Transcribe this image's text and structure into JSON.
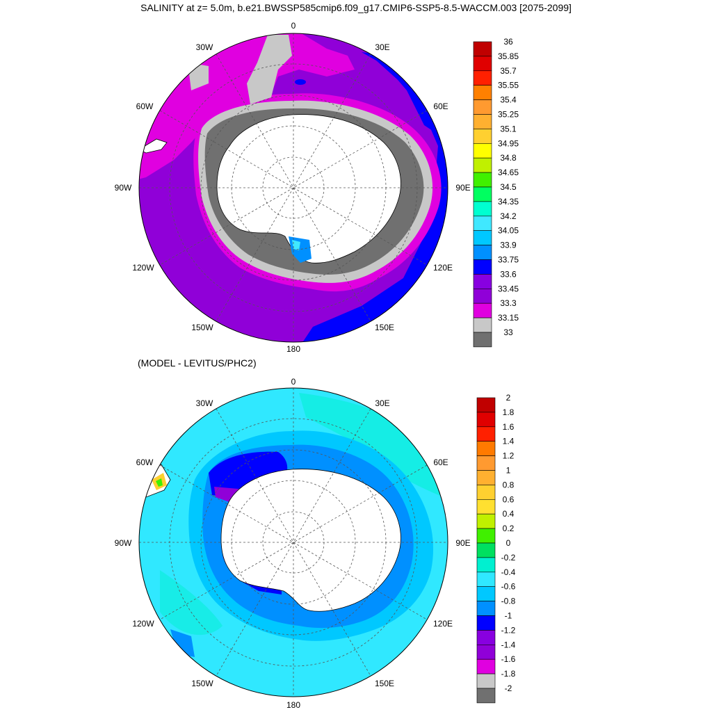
{
  "figure": {
    "title": "SALINITY at z=   5.0m, b.e21.BWSSP585cmip6.f09_g17.CMIP6-SSP5-8.5-WACCM.003 [2075-2099]",
    "subtitle": "(MODEL - LEVITUS/PHC2)"
  },
  "map_top": {
    "lon_labels": [
      "0",
      "30E",
      "60E",
      "90E",
      "120E",
      "150E",
      "180",
      "150W",
      "120W",
      "90W",
      "60W",
      "30W"
    ],
    "colorbar": {
      "labels": [
        "36",
        "35.85",
        "35.7",
        "35.55",
        "35.4",
        "35.25",
        "35.1",
        "34.95",
        "34.8",
        "34.65",
        "34.5",
        "34.35",
        "34.2",
        "34.05",
        "33.9",
        "33.75",
        "33.6",
        "33.45",
        "33.3",
        "33.15",
        "33"
      ],
      "colors": [
        "#c00000",
        "#e00000",
        "#ff2000",
        "#ff8000",
        "#ff9a30",
        "#ffb030",
        "#ffd030",
        "#ffff00",
        "#c0f000",
        "#40f000",
        "#00ff60",
        "#00ffd0",
        "#40e8ff",
        "#00c8ff",
        "#0090ff",
        "#0000ff",
        "#8800e0",
        "#9000d8",
        "#e000e0",
        "#c8c8c8",
        "#707070"
      ]
    }
  },
  "map_bottom": {
    "lon_labels": [
      "0",
      "30E",
      "60E",
      "90E",
      "120E",
      "150E",
      "180",
      "150W",
      "120W",
      "90W",
      "60W",
      "30W"
    ],
    "colorbar": {
      "labels": [
        "2",
        "1.8",
        "1.6",
        "1.4",
        "1.2",
        "1",
        "0.8",
        "0.6",
        "0.4",
        "0.2",
        "0",
        "-0.2",
        "-0.4",
        "-0.6",
        "-0.8",
        "-1",
        "-1.2",
        "-1.4",
        "-1.6",
        "-1.8",
        "-2"
      ],
      "colors": [
        "#c00000",
        "#e00000",
        "#ff2000",
        "#ff7a00",
        "#ff9a30",
        "#ffb030",
        "#ffd030",
        "#ffe030",
        "#c0f000",
        "#40f000",
        "#00e060",
        "#00f0d0",
        "#30e8ff",
        "#00c8ff",
        "#0090ff",
        "#0000ff",
        "#8800e0",
        "#9000d8",
        "#e000e0",
        "#c8c8c8",
        "#707070"
      ]
    }
  }
}
